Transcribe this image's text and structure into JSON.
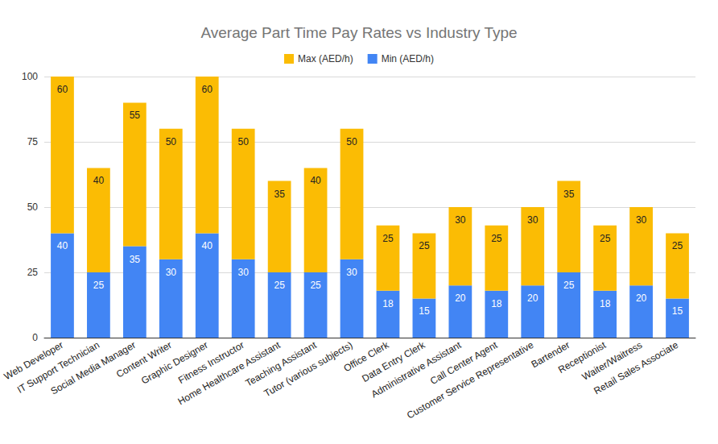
{
  "chart_data": {
    "type": "bar",
    "title": "Average Part Time Pay Rates vs Industry Type",
    "categories": [
      "Web Developer",
      "IT Support Technician",
      "Social Media Manager",
      "Content Writer",
      "Graphic Designer",
      "Fitness Instructor",
      "Home Healthcare Assistant",
      "Teaching Assistant",
      "Tutor (various subjects)",
      "Office Clerk",
      "Data Entry Clerk",
      "Administrative Assistant",
      "Call Center Agent",
      "Customer Service Representative",
      "Bartender",
      "Receptionist",
      "Waiter/Waitress",
      "Retail Sales Associate"
    ],
    "series": [
      {
        "name": "Min (AED/h)",
        "color": "#4285f4",
        "values": [
          40,
          25,
          35,
          30,
          40,
          30,
          25,
          25,
          30,
          18,
          15,
          20,
          18,
          20,
          25,
          18,
          20,
          15
        ]
      },
      {
        "name": "Max (AED/h)",
        "color": "#fbbc04",
        "values": [
          60,
          40,
          55,
          50,
          60,
          50,
          35,
          40,
          50,
          25,
          25,
          30,
          25,
          30,
          35,
          25,
          30,
          25
        ]
      }
    ],
    "ylim": [
      0,
      100
    ],
    "yticks": [
      0,
      25,
      50,
      75,
      100
    ],
    "grid": true,
    "stacked": true,
    "data_labels": true,
    "legend": "top"
  }
}
